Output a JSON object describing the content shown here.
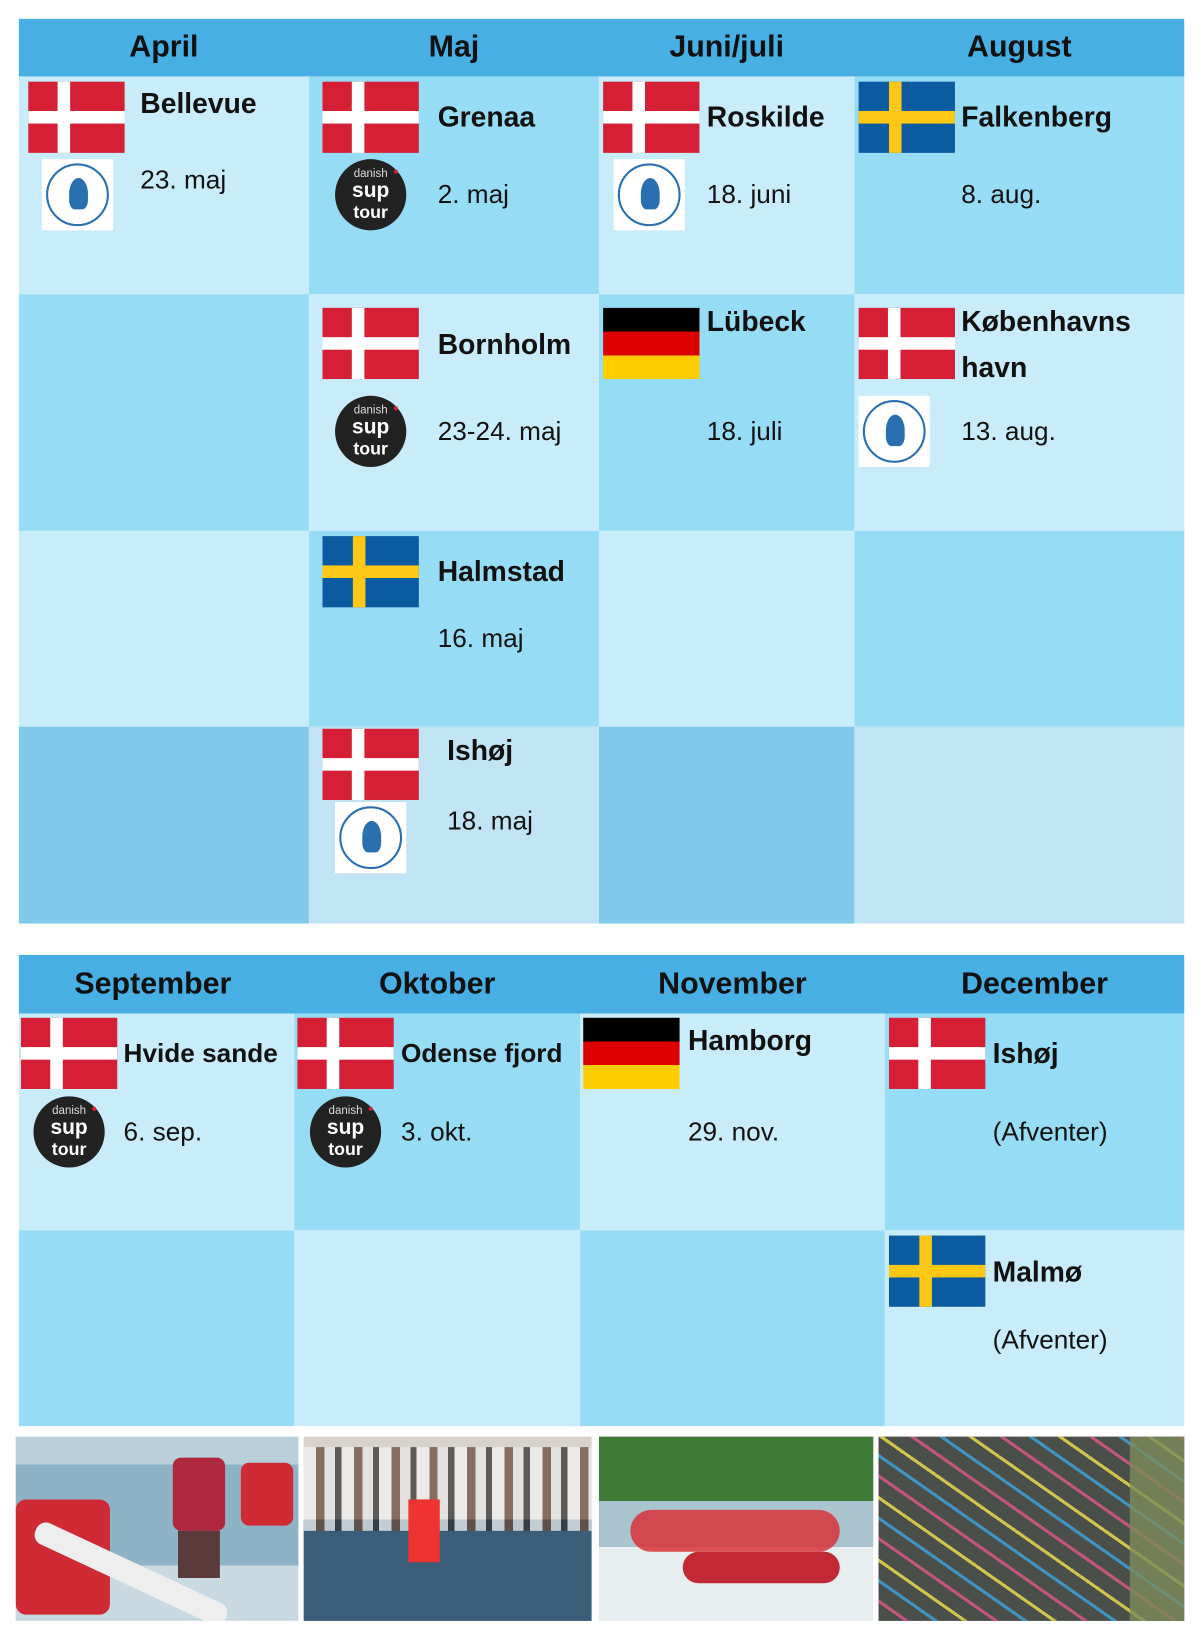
{
  "top_table": {
    "months": [
      "April",
      "Maj",
      "Juni/juli",
      "August"
    ],
    "events": [
      {
        "name": "Bellevue",
        "flag": "denmark",
        "logo": "copenhagen-sup-klub",
        "date": "23. maj"
      },
      {
        "name": "Grenaa",
        "flag": "denmark",
        "logo": "danish-sup-tour",
        "date": "2. maj"
      },
      {
        "name": "Roskilde",
        "flag": "denmark",
        "logo": "copenhagen-sup-klub",
        "date": "18. juni"
      },
      {
        "name": "Falkenberg",
        "flag": "sweden",
        "date": "8. aug."
      },
      {
        "name": "Bornholm",
        "flag": "denmark",
        "logo": "danish-sup-tour",
        "date": "23-24. maj"
      },
      {
        "name": "Lübeck",
        "flag": "germany",
        "date": "18. juli"
      },
      {
        "name_line1": "Københavns",
        "name_line2": "havn",
        "flag": "denmark",
        "logo": "copenhagen-sup-klub",
        "date": "13. aug."
      },
      {
        "name": "Halmstad",
        "flag": "sweden",
        "date": "16. maj"
      },
      {
        "name": "Ishøj",
        "flag": "denmark",
        "logo": "copenhagen-sup-klub",
        "date": "18. maj"
      }
    ]
  },
  "bottom_table": {
    "months": [
      "September",
      "Oktober",
      "November",
      "December"
    ],
    "events": [
      {
        "name": "Hvide sande",
        "flag": "denmark",
        "logo": "danish-sup-tour",
        "date": "6. sep."
      },
      {
        "name": "Odense fjord",
        "flag": "denmark",
        "logo": "danish-sup-tour",
        "date": "3. okt."
      },
      {
        "name": "Hamborg",
        "flag": "germany",
        "date": "29. nov."
      },
      {
        "name": "Ishøj",
        "flag": "denmark",
        "date": "(Afventer)"
      },
      {
        "name": "Malmø",
        "flag": "sweden",
        "date": "(Afventer)"
      }
    ]
  },
  "logo_text": {
    "danish": "danish",
    "sup": "sup",
    "tour": "tour"
  },
  "colors": {
    "header": "#47afe3",
    "cell_light": "#c9ecfa",
    "cell_mid": "#97dcf5",
    "denmark_red": "#d51f35",
    "sweden_blue": "#0b5ba0",
    "sweden_yellow": "#fcc715"
  }
}
